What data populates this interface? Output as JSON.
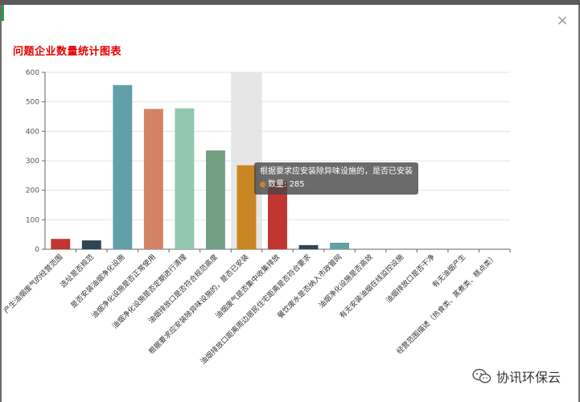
{
  "dialog": {
    "close_label": "×"
  },
  "chart_data": {
    "type": "bar",
    "title": "问题企业数量统计图表",
    "categories": [
      "产生油烟废气的经营范围",
      "选址是否规范",
      "是否安装油烟净化设施",
      "油烟净化设施是否正常使用",
      "油烟净化设施是否定期进行清理",
      "油烟排放口是否符合规范高度",
      "根据要求应安装除异味设施的，是否已安装",
      "油烟废气是否集中收集排放",
      "油烟排放口距离周边居民住宅距离是否符合要求",
      "餐饮废水是否纳入市政管网",
      "油烟净化设施是否高效",
      "有无安装油烟在线监控设施",
      "油烟排放口是否干净",
      "有无油烟产生",
      "经营范围描述（热食类、蒸煮类、糕点类）"
    ],
    "values": [
      35,
      30,
      557,
      476,
      478,
      335,
      285,
      230,
      14,
      22,
      0,
      0,
      0,
      0,
      0
    ],
    "colors": [
      "#c23531",
      "#2f4554",
      "#61a0a8",
      "#d48265",
      "#91c7ae",
      "#749f83",
      "#ca8622",
      "#c23531",
      "#2f4554",
      "#61a0a8",
      "#d48265",
      "#91c7ae",
      "#749f83",
      "#ca8622",
      "#c23531"
    ],
    "ylim": [
      0,
      600
    ],
    "yticks": [
      0,
      100,
      200,
      300,
      400,
      500,
      600
    ],
    "grid": true,
    "highlight_index": 6
  },
  "tooltip": {
    "title": "根据要求应安装除异味设施的，是否已安装",
    "series_label": "数量",
    "value": 285
  },
  "watermark": {
    "text": "协讯环保云"
  }
}
